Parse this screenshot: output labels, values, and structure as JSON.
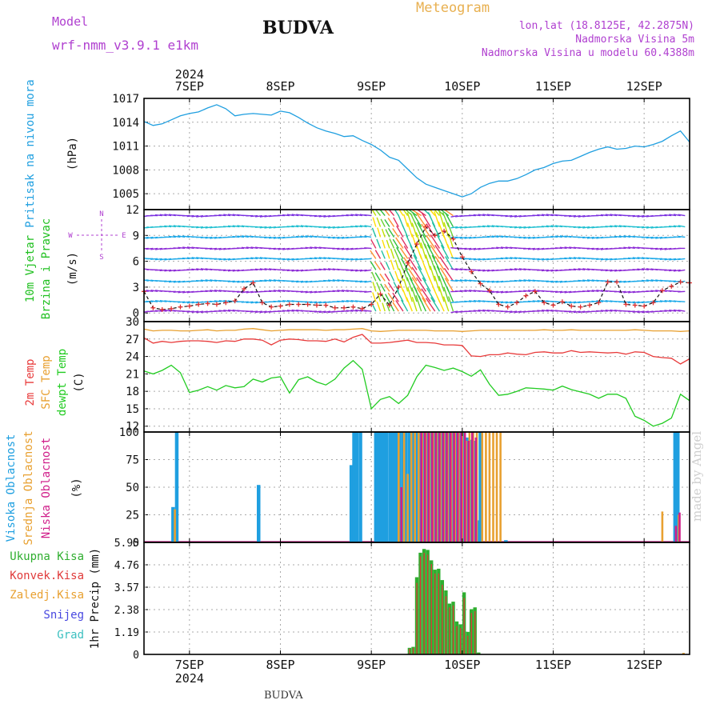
{
  "header": {
    "model_label": "Model",
    "model_name": "wrf-nmm_v3.9.1 e1km",
    "city": "BUDVA",
    "product": "Meteogram",
    "lonlat": "lon,lat (18.8125E, 42.2875N)",
    "altitude": "Nadmorska Visina 5m",
    "model_altitude": "Nadmorska Visina u modelu 60.4388m",
    "footer_city": "BUDVA",
    "credit": "made by Angel"
  },
  "time_axis": {
    "year": "2024",
    "days": [
      "7SEP",
      "8SEP",
      "9SEP",
      "10SEP",
      "11SEP",
      "12SEP"
    ]
  },
  "colors": {
    "pressure": "#1f9fe0",
    "temp2m": "#e83a3a",
    "sfc_temp": "#e8a030",
    "dewpoint": "#22cc22",
    "high_cloud": "#1f9fe0",
    "mid_cloud": "#e8a030",
    "low_cloud": "#d01f8a",
    "total_precip": "#2fae2f",
    "conv_precip": "#e03a3a",
    "purple_text": "#b040d0"
  },
  "chart_data": [
    {
      "type": "line",
      "panel": "pressure",
      "ylabel": "Pritisak na nivou mora",
      "unit": "(hPa)",
      "yticks": [
        "1017",
        "1014",
        "1011",
        "1008",
        "1005"
      ],
      "ylim": [
        1003,
        1017
      ],
      "x": [
        6.5,
        6.6,
        6.7,
        6.8,
        6.9,
        7.0,
        7.1,
        7.2,
        7.3,
        7.4,
        7.5,
        7.6,
        7.7,
        7.8,
        7.9,
        8.0,
        8.1,
        8.2,
        8.3,
        8.4,
        8.5,
        8.6,
        8.7,
        8.8,
        8.9,
        9.0,
        9.1,
        9.2,
        9.3,
        9.4,
        9.5,
        9.6,
        9.7,
        9.8,
        9.9,
        10.0,
        10.1,
        10.2,
        10.3,
        10.4,
        10.5,
        10.6,
        10.7,
        10.8,
        10.9,
        11.0,
        11.1,
        11.2,
        11.3,
        11.4,
        11.5,
        11.6,
        11.7,
        11.8,
        11.9,
        12.0,
        12.1,
        12.2,
        12.3,
        12.4,
        12.5
      ],
      "series": [
        {
          "color": "pressure",
          "values": [
            1014.1,
            1013.6,
            1013.8,
            1014.3,
            1014.8,
            1015.1,
            1015.3,
            1015.8,
            1016.2,
            1015.7,
            1014.8,
            1015.0,
            1015.1,
            1015.0,
            1014.9,
            1015.4,
            1015.2,
            1014.6,
            1013.9,
            1013.3,
            1012.9,
            1012.6,
            1012.2,
            1012.3,
            1011.7,
            1011.2,
            1010.5,
            1009.6,
            1009.2,
            1008.1,
            1007.0,
            1006.2,
            1005.8,
            1005.4,
            1005.0,
            1004.6,
            1005.0,
            1005.8,
            1006.3,
            1006.6,
            1006.6,
            1006.9,
            1007.4,
            1008.0,
            1008.3,
            1008.8,
            1009.1,
            1009.2,
            1009.7,
            1010.2,
            1010.6,
            1010.9,
            1010.6,
            1010.7,
            1011.0,
            1010.9,
            1011.2,
            1011.6,
            1012.3,
            1012.9,
            1011.5
          ]
        }
      ]
    },
    {
      "type": "line",
      "panel": "wind",
      "ylabel": "10m Vjetar Brzina i Pravac",
      "unit": "(m/s)",
      "compass": {
        "n": "N",
        "s": "S",
        "e": "E",
        "w": "W"
      },
      "yticks": [
        "12",
        "9",
        "6",
        "3",
        "0"
      ],
      "ylim": [
        -1,
        12
      ],
      "x": [
        6.5,
        6.6,
        6.7,
        6.8,
        6.9,
        7.0,
        7.1,
        7.2,
        7.3,
        7.4,
        7.5,
        7.6,
        7.7,
        7.8,
        7.9,
        8.0,
        8.1,
        8.2,
        8.3,
        8.4,
        8.5,
        8.6,
        8.7,
        8.8,
        8.9,
        9.0,
        9.1,
        9.2,
        9.3,
        9.4,
        9.5,
        9.6,
        9.7,
        9.8,
        9.9,
        10.0,
        10.1,
        10.2,
        10.3,
        10.4,
        10.5,
        10.6,
        10.7,
        10.8,
        10.9,
        11.0,
        11.1,
        11.2,
        11.3,
        11.4,
        11.5,
        11.6,
        11.7,
        11.8,
        11.9,
        12.0,
        12.1,
        12.2,
        12.3,
        12.4,
        12.5
      ],
      "series": [
        {
          "name": "",
          "values": [
            2.5,
            0.6,
            0.4,
            0.5,
            0.7,
            0.8,
            1.0,
            1.1,
            1.0,
            1.2,
            1.4,
            2.8,
            3.5,
            1.2,
            0.7,
            0.8,
            1.0,
            1.0,
            1.0,
            0.9,
            0.9,
            0.6,
            0.6,
            0.7,
            0.5,
            1.0,
            2.2,
            0.9,
            3.0,
            5.8,
            8.0,
            10.0,
            9.0,
            9.5,
            8.6,
            6.5,
            4.8,
            3.4,
            2.6,
            1.0,
            0.7,
            1.2,
            2.0,
            2.5,
            1.2,
            0.9,
            1.3,
            0.8,
            0.7,
            0.9,
            1.2,
            3.6,
            3.6,
            1.0,
            0.9,
            0.8,
            1.2,
            2.6,
            3.1,
            3.6,
            3.5
          ]
        }
      ]
    },
    {
      "type": "line",
      "panel": "temperature",
      "ylabel": "2m Temp",
      "ylabel2": "SFC Temp",
      "ylabel3": "dewpt Temp",
      "unit": "(C)",
      "yticks": [
        "30",
        "27",
        "24",
        "21",
        "18",
        "15",
        "12"
      ],
      "ylim": [
        11,
        30
      ],
      "x": [
        6.5,
        6.6,
        6.7,
        6.8,
        6.9,
        7.0,
        7.1,
        7.2,
        7.3,
        7.4,
        7.5,
        7.6,
        7.7,
        7.8,
        7.9,
        8.0,
        8.1,
        8.2,
        8.3,
        8.4,
        8.5,
        8.6,
        8.7,
        8.8,
        8.9,
        9.0,
        9.1,
        9.2,
        9.3,
        9.4,
        9.5,
        9.6,
        9.7,
        9.8,
        9.9,
        10.0,
        10.1,
        10.2,
        10.3,
        10.4,
        10.5,
        10.6,
        10.7,
        10.8,
        10.9,
        11.0,
        11.1,
        11.2,
        11.3,
        11.4,
        11.5,
        11.6,
        11.7,
        11.8,
        11.9,
        12.0,
        12.1,
        12.2,
        12.3,
        12.4,
        12.5
      ],
      "series": [
        {
          "name": "2m Temp",
          "color": "temp2m",
          "values": [
            27.2,
            26.3,
            26.6,
            26.4,
            26.6,
            26.7,
            26.7,
            26.6,
            26.4,
            26.7,
            26.6,
            27.0,
            27.0,
            26.8,
            26.0,
            26.8,
            27.0,
            26.9,
            26.7,
            26.7,
            26.6,
            27.0,
            26.5,
            27.3,
            27.8,
            26.3,
            26.3,
            26.4,
            26.6,
            26.8,
            26.4,
            26.4,
            26.3,
            26.0,
            26.0,
            25.9,
            24.1,
            24.0,
            24.3,
            24.3,
            24.6,
            24.4,
            24.3,
            24.7,
            24.8,
            24.6,
            24.6,
            25.0,
            24.7,
            24.8,
            24.7,
            24.6,
            24.7,
            24.4,
            24.8,
            24.7,
            24.0,
            23.8,
            23.7,
            22.7,
            23.6
          ]
        },
        {
          "name": "SFC Temp",
          "color": "sfc_temp",
          "values": [
            28.7,
            28.4,
            28.5,
            28.5,
            28.4,
            28.4,
            28.5,
            28.6,
            28.4,
            28.5,
            28.5,
            28.7,
            28.8,
            28.6,
            28.4,
            28.5,
            28.6,
            28.6,
            28.6,
            28.6,
            28.5,
            28.6,
            28.6,
            28.7,
            28.8,
            28.4,
            28.3,
            28.4,
            28.5,
            28.5,
            28.5,
            28.5,
            28.4,
            28.4,
            28.4,
            28.3,
            28.4,
            28.5,
            28.5,
            28.5,
            28.5,
            28.5,
            28.5,
            28.5,
            28.6,
            28.5,
            28.5,
            28.6,
            28.5,
            28.5,
            28.5,
            28.5,
            28.5,
            28.5,
            28.6,
            28.5,
            28.4,
            28.4,
            28.4,
            28.3,
            28.4
          ]
        },
        {
          "name": "dewpt Temp",
          "color": "dewpoint",
          "values": [
            21.5,
            21.0,
            21.6,
            22.5,
            21.2,
            17.8,
            18.2,
            18.8,
            18.2,
            19.0,
            18.6,
            18.8,
            20.1,
            19.6,
            20.3,
            20.5,
            17.7,
            20.0,
            20.5,
            19.6,
            19.1,
            20.1,
            22.0,
            23.3,
            21.8,
            15.0,
            16.6,
            17.1,
            15.9,
            17.3,
            20.5,
            22.5,
            22.1,
            21.6,
            22.0,
            21.4,
            20.6,
            21.7,
            19.2,
            17.3,
            17.5,
            18.0,
            18.6,
            18.5,
            18.4,
            18.2,
            18.9,
            18.3,
            17.9,
            17.5,
            16.8,
            17.5,
            17.5,
            16.8,
            13.7,
            13.0,
            12.0,
            12.5,
            13.4,
            17.5,
            16.4
          ]
        }
      ]
    },
    {
      "type": "bar",
      "panel": "cloud",
      "ylabel": "Visoka Oblacnost",
      "ylabel2": "Srednja Oblacnost",
      "ylabel3": "Niska Oblacnost",
      "unit": "(%)",
      "yticks": [
        "100",
        "75",
        "50",
        "25",
        "0"
      ],
      "ylim": [
        0,
        100
      ],
      "series": [
        {
          "name": "Visoka Oblacnost",
          "color": "high_cloud",
          "x": [
            6.82,
            6.86,
            7.76,
            8.78,
            8.81,
            8.84,
            8.88,
            9.05,
            9.08,
            9.11,
            9.14,
            9.17,
            9.21,
            9.24,
            9.27,
            9.31,
            9.35,
            9.38,
            9.42,
            9.46,
            9.49,
            9.53,
            9.57,
            9.61,
            9.65,
            9.69,
            9.73,
            9.77,
            9.81,
            9.85,
            9.89,
            9.93,
            9.97,
            10.01,
            10.05,
            10.09,
            10.13,
            10.17,
            10.2,
            10.48,
            12.34,
            12.37
          ],
          "values": [
            32,
            100,
            52,
            70,
            100,
            100,
            100,
            100,
            100,
            100,
            100,
            100,
            100,
            100,
            100,
            100,
            100,
            100,
            100,
            100,
            100,
            100,
            100,
            100,
            100,
            100,
            100,
            100,
            100,
            100,
            100,
            100,
            100,
            100,
            95,
            93,
            92,
            20,
            100,
            2,
            100,
            100
          ]
        },
        {
          "name": "Srednja Oblacnost",
          "color": "mid_cloud",
          "x": [
            6.84,
            9.3,
            9.36,
            9.4,
            9.44,
            9.48,
            9.52,
            9.56,
            9.6,
            9.64,
            9.68,
            9.72,
            9.76,
            9.8,
            9.84,
            9.88,
            9.92,
            9.96,
            10.0,
            10.04,
            10.08,
            10.12,
            10.16,
            10.22,
            10.26,
            10.3,
            10.34,
            10.38,
            10.42,
            12.2,
            12.38
          ],
          "values": [
            30,
            100,
            100,
            62,
            100,
            100,
            100,
            100,
            100,
            100,
            100,
            100,
            100,
            100,
            100,
            100,
            100,
            100,
            100,
            92,
            100,
            100,
            100,
            100,
            100,
            100,
            100,
            100,
            100,
            28,
            25
          ]
        },
        {
          "name": "Niska Oblacnost",
          "color": "low_cloud",
          "x": [
            9.33,
            9.55,
            9.59,
            9.63,
            9.67,
            9.71,
            9.75,
            9.79,
            9.83,
            9.87,
            9.91,
            9.95,
            9.99,
            10.03,
            10.07,
            10.11,
            10.15,
            12.35,
            12.39
          ],
          "values": [
            50,
            100,
            100,
            100,
            100,
            100,
            100,
            100,
            100,
            100,
            100,
            100,
            100,
            100,
            92,
            100,
            95,
            15,
            27
          ]
        }
      ]
    },
    {
      "type": "bar",
      "panel": "precip",
      "ylabel": "1hr Precip",
      "unit": "(mm)",
      "legend": [
        "Ukupna Kisa",
        "Konvek.Kisa",
        "Zaledj.Kisa",
        "Snijeg",
        "Grad"
      ],
      "legend_colors": [
        "#2fae2f",
        "#e03a3a",
        "#e8a030",
        "#4848e0",
        "#3cc0c0"
      ],
      "yticks": [
        "5.95",
        "4.76",
        "3.57",
        "2.38",
        "1.19",
        "0"
      ],
      "ylim": [
        0,
        5.95
      ],
      "x": [
        9.42,
        9.46,
        9.5,
        9.54,
        9.58,
        9.62,
        9.66,
        9.7,
        9.74,
        9.78,
        9.82,
        9.86,
        9.9,
        9.94,
        9.98,
        10.02,
        10.06,
        10.1,
        10.14,
        10.18
      ],
      "series": [
        {
          "name": "Ukupna Kisa",
          "color": "total_precip",
          "values": [
            0.35,
            0.4,
            4.1,
            5.4,
            5.6,
            5.55,
            5.0,
            4.5,
            4.55,
            3.95,
            3.4,
            2.7,
            2.8,
            1.75,
            1.6,
            3.3,
            1.2,
            2.4,
            2.5,
            0.1
          ]
        },
        {
          "name": "Konvek.Kisa",
          "color": "conv_precip",
          "values": [
            0.3,
            0.35,
            3.8,
            5.2,
            5.4,
            5.3,
            4.8,
            4.3,
            4.3,
            3.7,
            3.1,
            2.5,
            2.6,
            1.5,
            1.4,
            3.0,
            1.0,
            2.2,
            2.3,
            0.05
          ]
        }
      ]
    }
  ]
}
